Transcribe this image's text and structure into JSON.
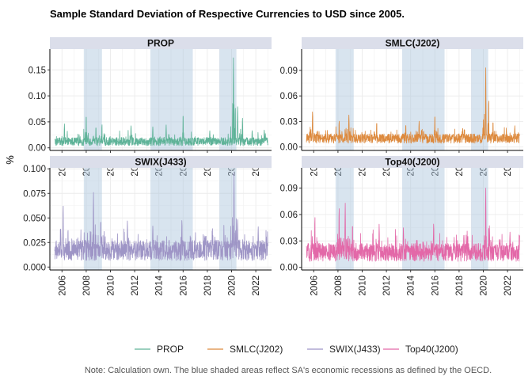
{
  "chart_data": {
    "type": "line",
    "title": "Sample Standard Deviation of Respective Currencies to USD since 2005.",
    "ylabel": "%",
    "xlabel": "",
    "note": "Note: Calculation own. The blue shaded areas reflect SA's economic recessions as defined by the OECD.",
    "legend_position": "bottom",
    "grid": true,
    "x_ticks": [
      2006,
      2008,
      2010,
      2012,
      2014,
      2016,
      2018,
      2020,
      2022
    ],
    "xlim": [
      2005.0,
      2023.3
    ],
    "recessions": [
      [
        2007.8,
        2009.3
      ],
      [
        2013.3,
        2016.8
      ],
      [
        2019.0,
        2020.4
      ]
    ],
    "panels": [
      {
        "name": "PROP",
        "color": "#5fb398",
        "ylim": [
          -0.005,
          0.19
        ],
        "y_ticks": [
          0.0,
          0.05,
          0.1,
          0.15
        ],
        "y_tick_labels": [
          "0.00",
          "0.05",
          "0.10",
          "0.15"
        ],
        "base": 0.012,
        "noise": 0.01,
        "floor": 0.001,
        "spikes": [
          [
            2006.2,
            0.046
          ],
          [
            2008.0,
            0.068
          ],
          [
            2008.8,
            0.043
          ],
          [
            2009.3,
            0.047
          ],
          [
            2011.7,
            0.045
          ],
          [
            2013.5,
            0.043
          ],
          [
            2014.6,
            0.044
          ],
          [
            2016.0,
            0.07
          ],
          [
            2018.2,
            0.033
          ],
          [
            2020.15,
            0.18
          ],
          [
            2020.5,
            0.085
          ],
          [
            2020.9,
            0.061
          ],
          [
            2021.7,
            0.035
          ],
          [
            2022.7,
            0.036
          ]
        ]
      },
      {
        "name": "SMLC(J202)",
        "color": "#dd8a3e",
        "ylim": [
          -0.004,
          0.115
        ],
        "y_ticks": [
          0.0,
          0.03,
          0.06,
          0.09
        ],
        "y_tick_labels": [
          "0.00",
          "0.03",
          "0.06",
          "0.09"
        ],
        "base": 0.01,
        "noise": 0.007,
        "floor": 0.001,
        "spikes": [
          [
            2005.9,
            0.044
          ],
          [
            2008.1,
            0.032
          ],
          [
            2008.9,
            0.04
          ],
          [
            2011.2,
            0.031
          ],
          [
            2013.6,
            0.028
          ],
          [
            2014.7,
            0.032
          ],
          [
            2016.0,
            0.04
          ],
          [
            2018.3,
            0.023
          ],
          [
            2020.2,
            0.093
          ],
          [
            2020.45,
            0.06
          ],
          [
            2020.8,
            0.032
          ],
          [
            2022.6,
            0.025
          ]
        ]
      },
      {
        "name": "SWIX(J433)",
        "color": "#9e95c6",
        "ylim": [
          -0.003,
          0.101
        ],
        "y_ticks": [
          0.0,
          0.025,
          0.05,
          0.075,
          0.1
        ],
        "y_tick_labels": [
          "0.000",
          "0.025",
          "0.050",
          "0.075",
          "0.100"
        ],
        "base": 0.017,
        "noise": 0.013,
        "floor": 0.002,
        "spikes": [
          [
            2006.1,
            0.066
          ],
          [
            2008.6,
            0.076
          ],
          [
            2009.2,
            0.051
          ],
          [
            2011.4,
            0.047
          ],
          [
            2013.5,
            0.044
          ],
          [
            2015.9,
            0.05
          ],
          [
            2018.4,
            0.04
          ],
          [
            2020.2,
            0.096
          ],
          [
            2020.5,
            0.051
          ],
          [
            2022.2,
            0.041
          ]
        ]
      },
      {
        "name": "Top40(J200)",
        "color": "#e368a8",
        "ylim": [
          -0.003,
          0.113
        ],
        "y_ticks": [
          0.0,
          0.03,
          0.06,
          0.09
        ],
        "y_tick_labels": [
          "0.00",
          "0.03",
          "0.06",
          "0.09"
        ],
        "base": 0.017,
        "noise": 0.013,
        "floor": 0.002,
        "spikes": [
          [
            2006.1,
            0.06
          ],
          [
            2008.1,
            0.071
          ],
          [
            2008.6,
            0.073
          ],
          [
            2009.2,
            0.052
          ],
          [
            2011.4,
            0.049
          ],
          [
            2013.4,
            0.045
          ],
          [
            2015.9,
            0.052
          ],
          [
            2018.4,
            0.04
          ],
          [
            2020.2,
            0.09
          ],
          [
            2020.5,
            0.05
          ],
          [
            2022.2,
            0.04
          ]
        ]
      }
    ],
    "legend": [
      {
        "label": "PROP",
        "color": "#5fb398"
      },
      {
        "label": "SMLC(J202)",
        "color": "#dd8a3e"
      },
      {
        "label": "SWIX(J433)",
        "color": "#9e95c6"
      },
      {
        "label": "Top40(J200)",
        "color": "#e368a8"
      }
    ]
  }
}
